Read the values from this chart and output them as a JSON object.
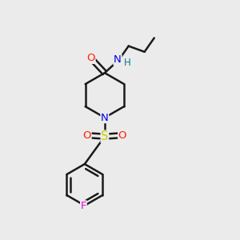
{
  "bg_color": "#ebebeb",
  "bond_color": "#1a1a1a",
  "bond_lw": 1.8,
  "atom_colors": {
    "O": "#ff2000",
    "N": "#0000ee",
    "H": "#008080",
    "S": "#cccc00",
    "F": "#ee00ee"
  },
  "fig_w": 3.0,
  "fig_h": 3.0,
  "dpi": 100,
  "xlim": [
    0,
    10
  ],
  "ylim": [
    0,
    10
  ]
}
